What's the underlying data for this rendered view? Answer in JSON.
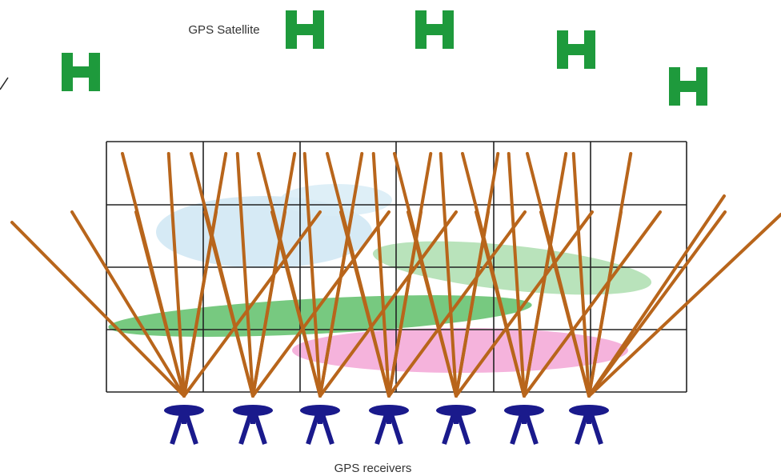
{
  "labels": {
    "satellite": "GPS Satellite",
    "receivers": "GPS receivers"
  }
}
